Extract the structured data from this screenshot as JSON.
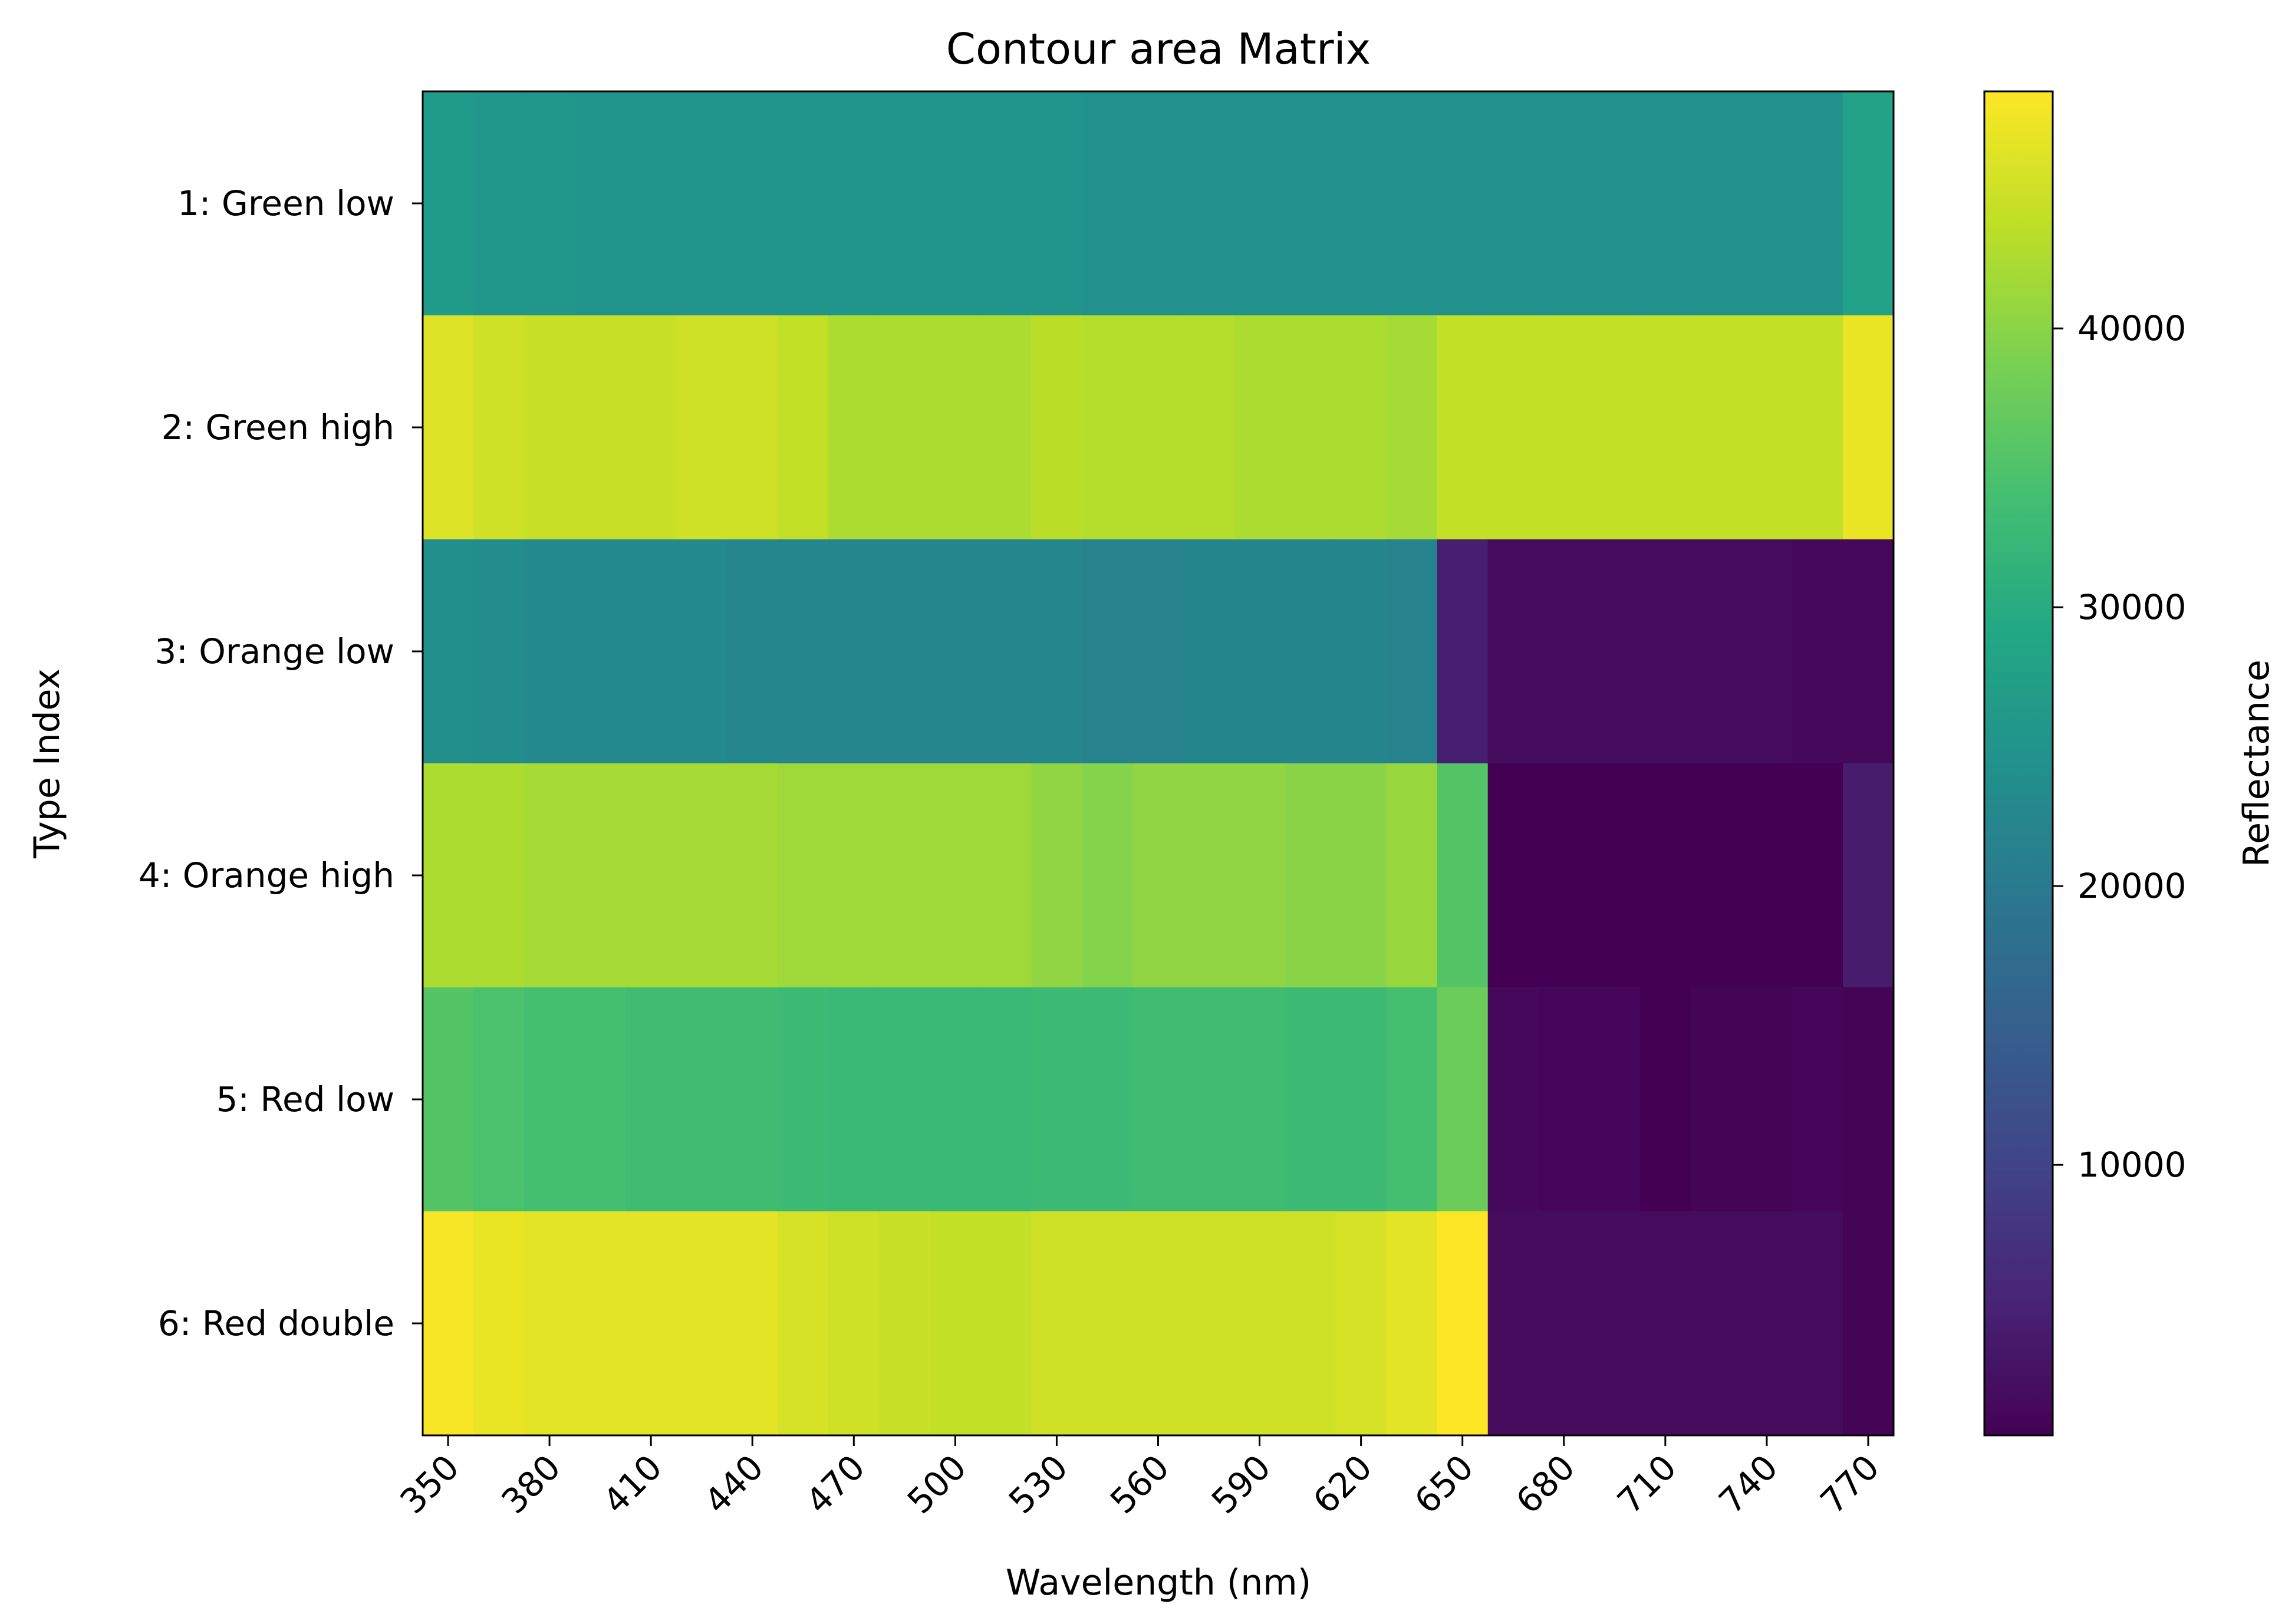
{
  "chart_data": {
    "type": "heatmap",
    "title": "Contour area Matrix",
    "xlabel": "Wavelength (nm)",
    "ylabel": "Type Index",
    "colorbar_label": "Reflectance",
    "colormap": "viridis",
    "x": [
      350,
      365,
      380,
      395,
      410,
      425,
      440,
      455,
      470,
      485,
      500,
      515,
      530,
      545,
      560,
      575,
      590,
      605,
      620,
      635,
      650,
      665,
      680,
      695,
      710,
      725,
      740,
      755,
      770
    ],
    "x_tick_labels": [
      "350",
      "380",
      "410",
      "440",
      "470",
      "500",
      "530",
      "560",
      "590",
      "620",
      "650",
      "680",
      "710",
      "740",
      "770"
    ],
    "y_tick_labels": [
      "1: Green low",
      "2: Green high",
      "3: Orange low",
      "4: Orange high",
      "5: Red low",
      "6: Red double"
    ],
    "color_range": [
      300,
      48500
    ],
    "colorbar_ticks": [
      10000,
      20000,
      30000,
      40000
    ],
    "colorbar_tick_labels": [
      "10000",
      "20000",
      "30000",
      "40000"
    ],
    "values": [
      [
        26500,
        25500,
        25500,
        25000,
        25000,
        25000,
        25000,
        25000,
        25000,
        25000,
        25000,
        25000,
        25000,
        24500,
        24500,
        24500,
        24500,
        24500,
        24500,
        24500,
        24500,
        24500,
        24500,
        24500,
        24500,
        24500,
        24500,
        24500,
        28000
      ],
      [
        46000,
        45000,
        44500,
        44500,
        44500,
        45000,
        45000,
        44000,
        42500,
        42500,
        42500,
        42500,
        43500,
        43000,
        43000,
        43000,
        42500,
        42500,
        42500,
        42000,
        44000,
        44000,
        44000,
        44000,
        44000,
        44000,
        44000,
        44000,
        47000
      ],
      [
        24000,
        23500,
        23000,
        23000,
        23000,
        23000,
        22500,
        22500,
        22500,
        22500,
        22500,
        22500,
        22500,
        21500,
        21500,
        22000,
        22000,
        22000,
        22000,
        21500,
        4500,
        1800,
        1800,
        1800,
        1800,
        1800,
        1800,
        1200,
        1200
      ],
      [
        42500,
        42500,
        42000,
        42000,
        42000,
        42000,
        42000,
        41500,
        41500,
        41500,
        41500,
        41500,
        40500,
        39500,
        40500,
        40500,
        40500,
        40000,
        40000,
        41000,
        35500,
        300,
        300,
        300,
        300,
        300,
        300,
        300,
        4000
      ],
      [
        35500,
        34500,
        34000,
        34000,
        33500,
        33500,
        33500,
        33000,
        32500,
        32500,
        32500,
        32500,
        33000,
        33000,
        33500,
        33500,
        33500,
        33000,
        33000,
        34000,
        37500,
        1200,
        1000,
        1000,
        300,
        800,
        800,
        1000,
        800
      ],
      [
        48000,
        47000,
        46500,
        46500,
        46500,
        46500,
        46500,
        45500,
        45000,
        44500,
        44000,
        44000,
        45000,
        45000,
        45000,
        45000,
        45000,
        45000,
        45500,
        46500,
        48500,
        1800,
        1800,
        1800,
        1800,
        1800,
        1800,
        1800,
        800
      ]
    ]
  }
}
